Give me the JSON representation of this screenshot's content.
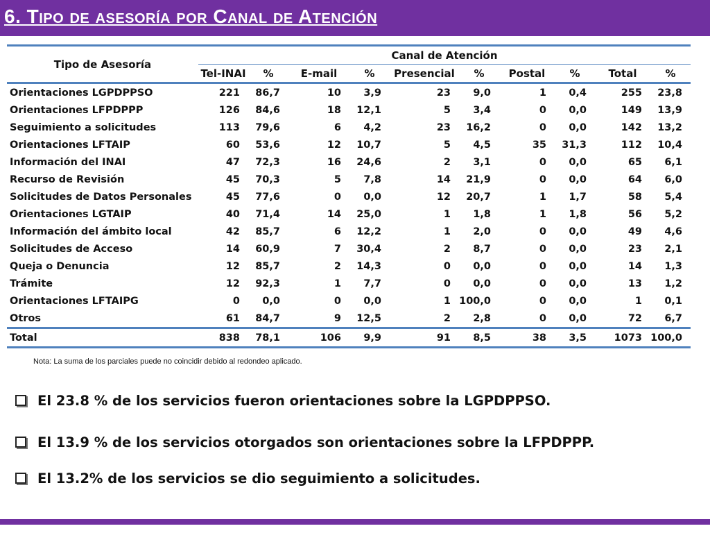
{
  "title": "6. Tipo de asesoría por Canal de Atención",
  "table": {
    "row_header": "Tipo de Asesoría",
    "group_header": "Canal de Atención",
    "columns": [
      "Tel-INAI",
      "%",
      "E-mail",
      "%",
      "Presencial",
      "%",
      "Postal",
      "%",
      "Total",
      "%"
    ],
    "rows": [
      [
        "Orientaciones LGPDPPSO",
        "221",
        "86,7",
        "10",
        "3,9",
        "23",
        "9,0",
        "1",
        "0,4",
        "255",
        "23,8"
      ],
      [
        "Orientaciones LFPDPPP",
        "126",
        "84,6",
        "18",
        "12,1",
        "5",
        "3,4",
        "0",
        "0,0",
        "149",
        "13,9"
      ],
      [
        "Seguimiento a solicitudes",
        "113",
        "79,6",
        "6",
        "4,2",
        "23",
        "16,2",
        "0",
        "0,0",
        "142",
        "13,2"
      ],
      [
        "Orientaciones LFTAIP",
        "60",
        "53,6",
        "12",
        "10,7",
        "5",
        "4,5",
        "35",
        "31,3",
        "112",
        "10,4"
      ],
      [
        "Información del INAI",
        "47",
        "72,3",
        "16",
        "24,6",
        "2",
        "3,1",
        "0",
        "0,0",
        "65",
        "6,1"
      ],
      [
        "Recurso de Revisión",
        "45",
        "70,3",
        "5",
        "7,8",
        "14",
        "21,9",
        "0",
        "0,0",
        "64",
        "6,0"
      ],
      [
        "Solicitudes de Datos Personales",
        "45",
        "77,6",
        "0",
        "0,0",
        "12",
        "20,7",
        "1",
        "1,7",
        "58",
        "5,4"
      ],
      [
        "Orientaciones LGTAIP",
        "40",
        "71,4",
        "14",
        "25,0",
        "1",
        "1,8",
        "1",
        "1,8",
        "56",
        "5,2"
      ],
      [
        "Información del ámbito local",
        "42",
        "85,7",
        "6",
        "12,2",
        "1",
        "2,0",
        "0",
        "0,0",
        "49",
        "4,6"
      ],
      [
        "Solicitudes de Acceso",
        "14",
        "60,9",
        "7",
        "30,4",
        "2",
        "8,7",
        "0",
        "0,0",
        "23",
        "2,1"
      ],
      [
        "Queja o Denuncia",
        "12",
        "85,7",
        "2",
        "14,3",
        "0",
        "0,0",
        "0",
        "0,0",
        "14",
        "1,3"
      ],
      [
        "Trámite",
        "12",
        "92,3",
        "1",
        "7,7",
        "0",
        "0,0",
        "0",
        "0,0",
        "13",
        "1,2"
      ],
      [
        "Orientaciones LFTAIPG",
        "0",
        "0,0",
        "0",
        "0,0",
        "1",
        "100,0",
        "0",
        "0,0",
        "1",
        "0,1"
      ],
      [
        "Otros",
        "61",
        "84,7",
        "9",
        "12,5",
        "2",
        "2,8",
        "0",
        "0,0",
        "72",
        "6,7"
      ]
    ],
    "total": [
      "Total",
      "838",
      "78,1",
      "106",
      "9,9",
      "91",
      "8,5",
      "38",
      "3,5",
      "1073",
      "100,0"
    ]
  },
  "note": "Nota: La suma de los parciales puede no coincidir debido al redondeo aplicado.",
  "bullets": [
    "El 23.8 % de los servicios fueron orientaciones sobre la LGPDPPSO.",
    "El 13.9 % de los servicios otorgados son orientaciones sobre la LFPDPPP.",
    "El 13.2% de los servicios se dio seguimiento a solicitudes."
  ],
  "colors": {
    "accent": "#7030a0",
    "table_rule": "#4f81bd"
  }
}
